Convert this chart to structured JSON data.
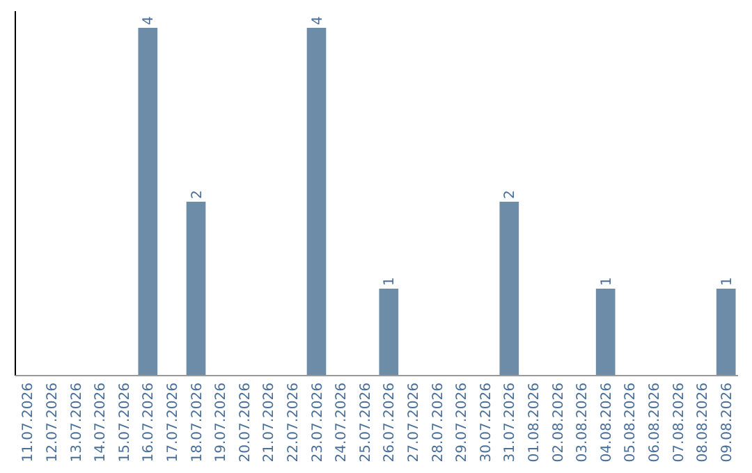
{
  "chart_data": {
    "type": "bar",
    "categories": [
      "11.07.2026",
      "12.07.2026",
      "13.07.2026",
      "14.07.2026",
      "15.07.2026",
      "16.07.2026",
      "17.07.2026",
      "18.07.2026",
      "19.07.2026",
      "20.07.2026",
      "21.07.2026",
      "22.07.2026",
      "23.07.2026",
      "24.07.2026",
      "25.07.2026",
      "26.07.2026",
      "27.07.2026",
      "28.07.2026",
      "29.07.2026",
      "30.07.2026",
      "31.07.2026",
      "01.08.2026",
      "02.08.2026",
      "03.08.2026",
      "04.08.2026",
      "05.08.2026",
      "06.08.2026",
      "07.08.2026",
      "08.08.2026",
      "09.08.2026"
    ],
    "values": [
      0,
      0,
      0,
      0,
      0,
      4,
      0,
      2,
      0,
      0,
      0,
      0,
      4,
      0,
      0,
      1,
      0,
      0,
      0,
      0,
      2,
      0,
      0,
      0,
      1,
      0,
      0,
      0,
      0,
      1
    ],
    "value_labels": [
      null,
      null,
      null,
      null,
      null,
      "4",
      null,
      "2",
      null,
      null,
      null,
      null,
      "4",
      null,
      null,
      "1",
      null,
      null,
      null,
      null,
      "2",
      null,
      null,
      null,
      "1",
      null,
      null,
      null,
      null,
      "1"
    ],
    "color": "#6d8ca8",
    "tick_labels": "x"
  }
}
